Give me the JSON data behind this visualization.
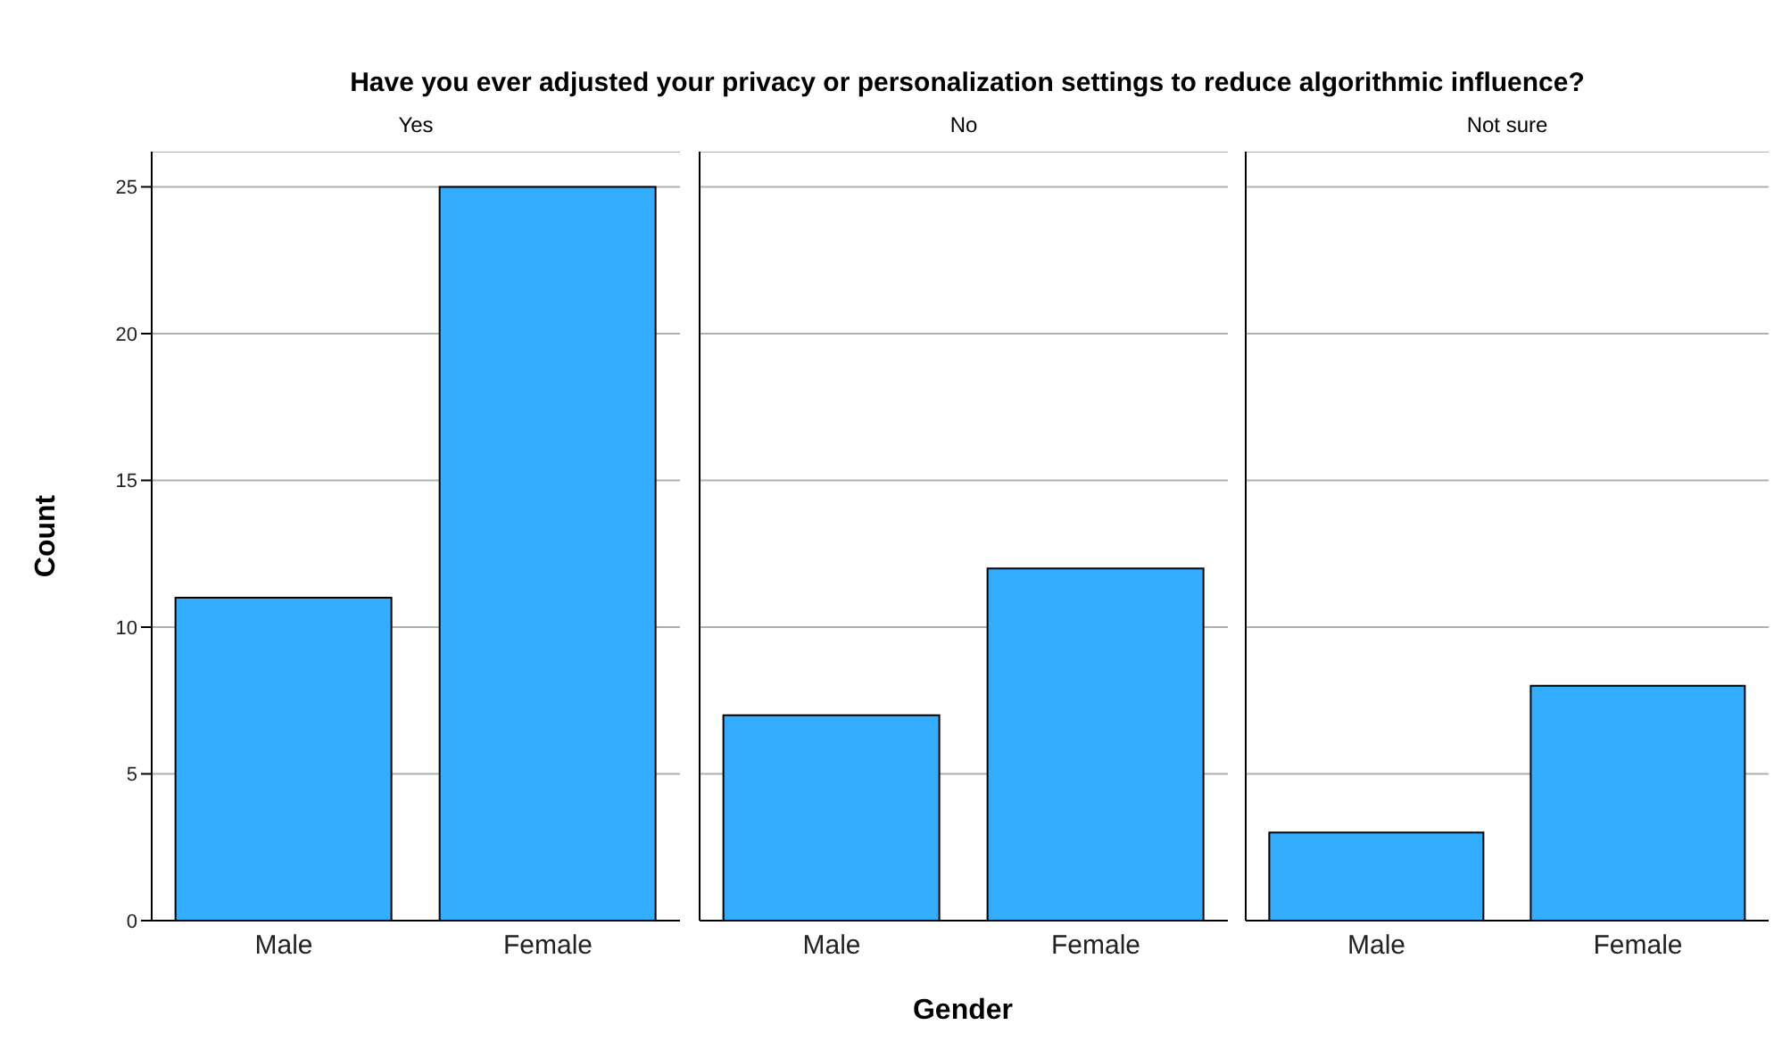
{
  "chart_data": [
    {
      "type": "bar",
      "title": "Yes",
      "annotations": [
        "Have you ever adjusted your privacy or personalization settings to reduce algorithmic influence?"
      ],
      "ylabel": "Count",
      "categories": [
        "Male",
        "Female"
      ],
      "values": [
        11,
        25
      ],
      "color": "#33adff",
      "ylim": [
        0,
        26.2
      ],
      "yticks": [
        0,
        5,
        10,
        15,
        20,
        25
      ],
      "grid": "y"
    },
    {
      "type": "bar",
      "title": "No",
      "xlabel": "Gender",
      "categories": [
        "Male",
        "Female"
      ],
      "values": [
        7,
        12
      ],
      "color": "#33adff",
      "ylim": [
        0,
        26.2
      ],
      "yticks": [
        0,
        5,
        10,
        15,
        20,
        25
      ],
      "grid": "y",
      "tick_labels": "x"
    },
    {
      "type": "bar",
      "title": "Not sure",
      "categories": [
        "Male",
        "Female"
      ],
      "values": [
        3,
        8
      ],
      "color": "#33adff",
      "ylim": [
        0,
        26.2
      ],
      "yticks": [
        0,
        5,
        10,
        15,
        20,
        25
      ],
      "grid": "y",
      "tick_labels": "x"
    }
  ]
}
